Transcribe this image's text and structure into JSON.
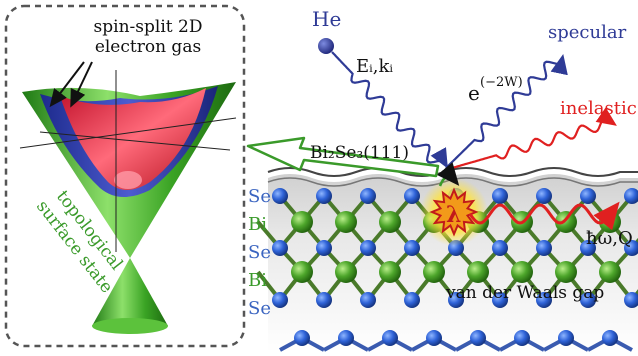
{
  "inset": {
    "title_line1": "spin-split 2D",
    "title_line2": "electron gas",
    "curved_label_line1": "topological",
    "curved_label_line2": "surface state"
  },
  "beam": {
    "projectile": "He",
    "incident_label": "Eᵢ,kᵢ",
    "debye_waller": "e",
    "debye_waller_exp": "(−2W)",
    "specular": "specular",
    "inelastic": "inelastic",
    "phonon_label": "ħω,Q",
    "coupling_symbol": "λ"
  },
  "material": {
    "surface": "Bi₂Se₃(111)",
    "gap_label": "van der Waals gap",
    "layers": [
      "Se",
      "Bi",
      "Se",
      "Bi",
      "Se"
    ]
  },
  "colors": {
    "blue": "#2f3b96",
    "green": "#3a9a2a",
    "red": "#e02020",
    "gray": "#555555"
  }
}
